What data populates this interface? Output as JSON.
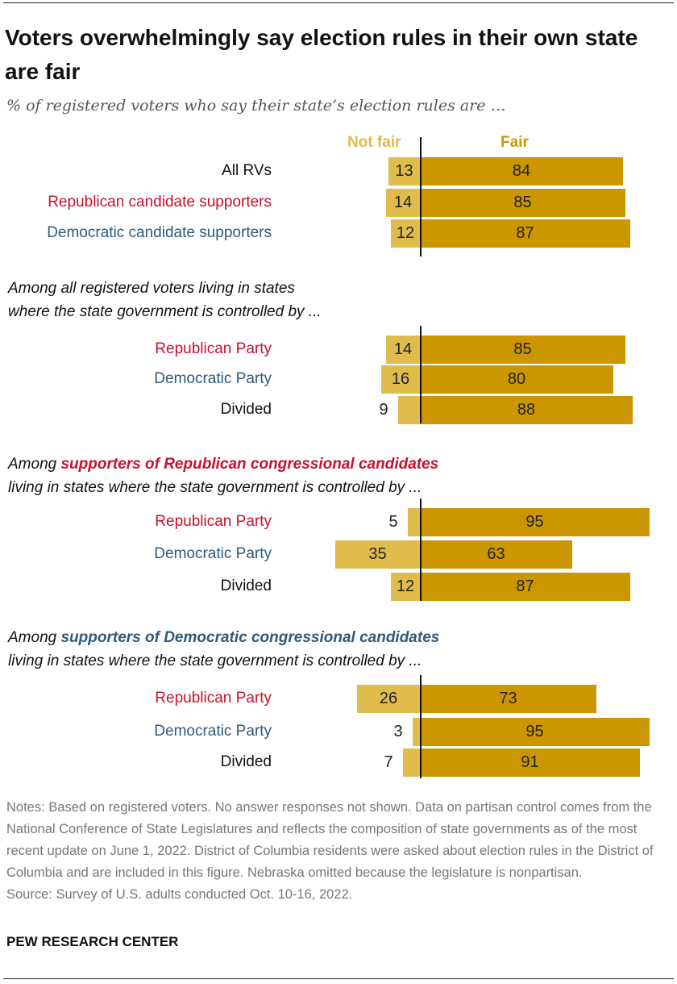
{
  "title": "Voters overwhelmingly say election rules in their own state are fair",
  "subtitle": "% of registered voters who say their state’s election rules are …",
  "colors": {
    "fair": "#CC9600",
    "not_fair": "#E0BC4C",
    "republican": "#C8102E",
    "democratic": "#2F5A7A",
    "neutral": "#111111"
  },
  "chart_data": {
    "type": "bar",
    "orientation": "horizontal diverging",
    "legend": [
      "Not fair",
      "Fair"
    ],
    "groups": [
      {
        "header": [],
        "rows": [
          {
            "label": "All RVs",
            "party": "neutral",
            "not_fair": 13,
            "fair": 84
          },
          {
            "label": "Republican candidate supporters",
            "party": "republican",
            "not_fair": 14,
            "fair": 85
          },
          {
            "label": "Democratic candidate supporters",
            "party": "democratic",
            "not_fair": 12,
            "fair": 87
          }
        ]
      },
      {
        "header": [
          "Among all registered voters living in states",
          "where the state government is controlled by ..."
        ],
        "highlight": "",
        "highlight_party": "",
        "rows": [
          {
            "label": "Republican Party",
            "party": "republican",
            "not_fair": 14,
            "fair": 85
          },
          {
            "label": "Democratic Party",
            "party": "democratic",
            "not_fair": 16,
            "fair": 80
          },
          {
            "label": "Divided",
            "party": "neutral",
            "not_fair": 9,
            "fair": 88
          }
        ]
      },
      {
        "header": [
          "Among ",
          "living in states where the state government is controlled by ..."
        ],
        "highlight": "supporters of Republican congressional candidates",
        "highlight_party": "republican",
        "rows": [
          {
            "label": "Republican Party",
            "party": "republican",
            "not_fair": 5,
            "fair": 95
          },
          {
            "label": "Democratic Party",
            "party": "democratic",
            "not_fair": 35,
            "fair": 63
          },
          {
            "label": "Divided",
            "party": "neutral",
            "not_fair": 12,
            "fair": 87
          }
        ]
      },
      {
        "header": [
          "Among ",
          "living in states where the state government is controlled by ..."
        ],
        "highlight": "supporters of Democratic congressional candidates",
        "highlight_party": "democratic",
        "rows": [
          {
            "label": "Republican Party",
            "party": "republican",
            "not_fair": 26,
            "fair": 73
          },
          {
            "label": "Democratic Party",
            "party": "democratic",
            "not_fair": 3,
            "fair": 95
          },
          {
            "label": "Divided",
            "party": "neutral",
            "not_fair": 7,
            "fair": 91
          }
        ]
      }
    ]
  },
  "notes": "Notes: Based on registered voters. No answer responses not shown. Data on partisan control comes from the National Conference of State Legislatures and reflects the composition of state governments as of the most recent update on June 1, 2022. District of Columbia residents were asked about election rules in the District of Columbia and are included in this figure. Nebraska omitted because the legislature is nonpartisan.",
  "source": "Source: Survey of U.S. adults conducted Oct. 10-16, 2022.",
  "brand": "PEW RESEARCH CENTER"
}
